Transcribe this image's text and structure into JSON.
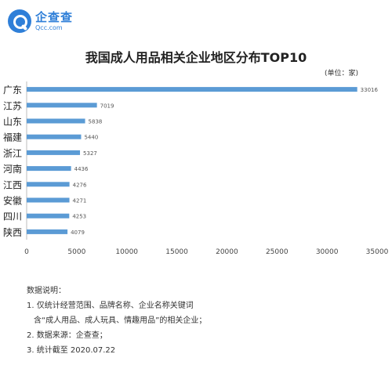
{
  "brand": {
    "name_cn": "企查查",
    "name_en": "Qcc.com"
  },
  "unit_label": "(单位：家)",
  "chart_data": {
    "type": "bar",
    "orientation": "horizontal",
    "title": "我国成人用品相关企业地区分布TOP10",
    "categories": [
      "广东",
      "江苏",
      "山东",
      "福建",
      "浙江",
      "河南",
      "江西",
      "安徽",
      "四川",
      "陕西"
    ],
    "values": [
      33016,
      7019,
      5838,
      5440,
      5327,
      4436,
      4276,
      4271,
      4253,
      4079
    ],
    "xlim": [
      0,
      35000
    ],
    "xticks": [
      0,
      5000,
      10000,
      15000,
      20000,
      25000,
      30000,
      35000
    ],
    "bar_color": "#5b9bd5",
    "grid": false,
    "legend": false
  },
  "notes": {
    "heading": "数据说明：",
    "line1": "1. 仅统计经营范围、品牌名称、企业名称关键词",
    "line1b": "含“成人用品、成人玩具、情趣用品”的相关企业；",
    "line2": "2. 数据来源：企查查；",
    "line3": "3. 统计截至 2020.07.22"
  }
}
